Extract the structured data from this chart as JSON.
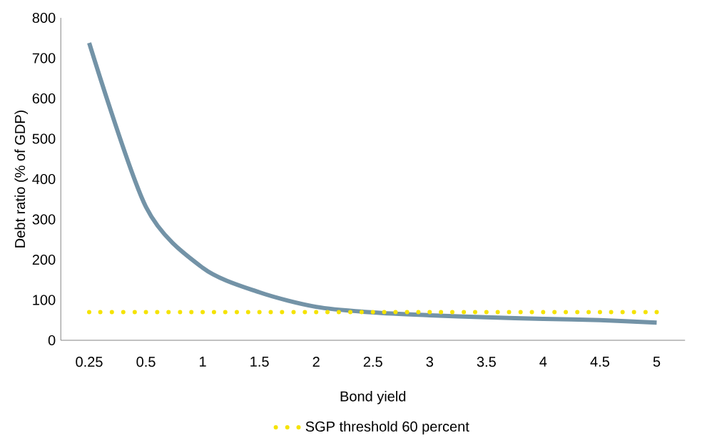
{
  "chart_data": {
    "type": "line",
    "xlabel": "Bond yield",
    "ylabel": "Debt ratio (% of GDP)",
    "categories": [
      "0.25",
      "0.5",
      "1",
      "1.5",
      "2",
      "2.5",
      "3",
      "3.5",
      "4",
      "4.5",
      "5"
    ],
    "series": [
      {
        "color": "#7393a7",
        "line_style": "solid",
        "values": [
          738,
          331,
          180,
          119,
          83,
          69,
          62,
          57,
          53,
          50,
          44
        ]
      },
      {
        "name": "SGP threshold 60 percent",
        "color": "#f5e300",
        "line_style": "dotted",
        "values": [
          70,
          70,
          70,
          70,
          70,
          70,
          70,
          70,
          70,
          70,
          70
        ]
      }
    ],
    "ylim": [
      0,
      800
    ],
    "yticks": [
      0,
      100,
      200,
      300,
      400,
      500,
      600,
      700,
      800
    ],
    "grid": false,
    "legend": "bottom",
    "marker": "none"
  }
}
